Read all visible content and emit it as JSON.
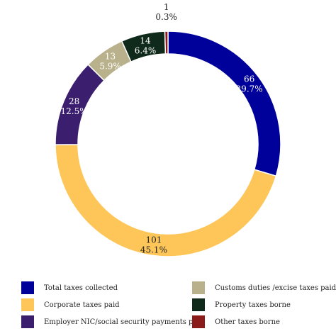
{
  "chart_data": {
    "type": "pie",
    "donut": true,
    "slices": [
      {
        "name": "Total taxes collected",
        "value": 66,
        "percent_label": "29.7%",
        "color": "#00009a",
        "label_color": "#ffffff"
      },
      {
        "name": "Corporate taxes paid",
        "value": 101,
        "percent_label": "45.1%",
        "color": "#fec658",
        "label_color": "#222222"
      },
      {
        "name": "Employer NIC/social security payments paid",
        "value": 28,
        "percent_label": "12.5%",
        "color": "#3b1f6e",
        "label_color": "#ffffff"
      },
      {
        "name": "Customs duties /excise taxes paid",
        "value": 13,
        "percent_label": "5.9%",
        "color": "#b8b18c",
        "label_color": "#ffffff"
      },
      {
        "name": "Property taxes borne",
        "value": 14,
        "percent_label": "6.4%",
        "color": "#0f2a1a",
        "label_color": "#ffffff"
      },
      {
        "name": "Other taxes borne",
        "value": 1,
        "percent_label": "0.3%",
        "color": "#8b1a1a",
        "label_color": "#222222"
      }
    ],
    "start_angle": "top",
    "direction": "clockwise",
    "legend_position": "bottom"
  },
  "legend": {
    "items": [
      {
        "label": "Total taxes collected",
        "color": "#00009a"
      },
      {
        "label": "Customs duties /excise taxes paid",
        "color": "#b8b18c"
      },
      {
        "label": "Corporate taxes paid",
        "color": "#fec658"
      },
      {
        "label": "Property taxes borne",
        "color": "#0f2a1a"
      },
      {
        "label": "Employer NIC/social security payments paid",
        "color": "#3b1f6e"
      },
      {
        "label": "Other taxes borne",
        "color": "#8b1a1a"
      }
    ]
  }
}
